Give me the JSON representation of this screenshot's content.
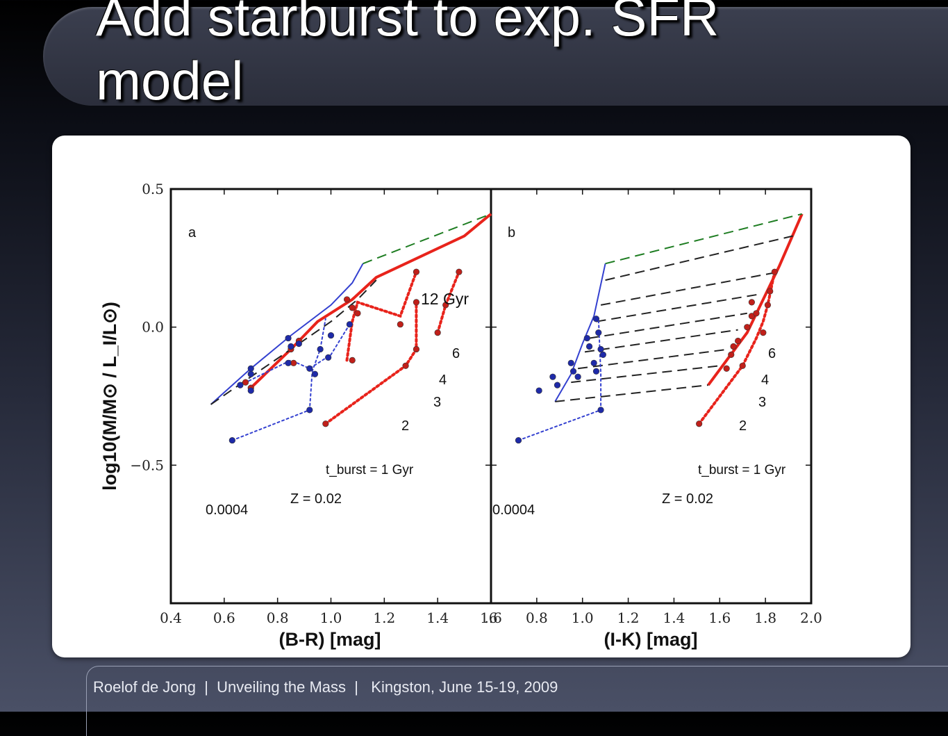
{
  "slide": {
    "title": "Add starburst to exp. SFR model",
    "footer": "Roelof de Jong  |  Unveiling the Mass  |   Kingston, June 15-19, 2009"
  },
  "chart_data": [
    {
      "panel_label": "a",
      "type": "line",
      "xlabel": "(B-R) [mag]",
      "ylabel": "log10(M/M⊙ / L_I/L⊙)",
      "xlim": [
        0.4,
        1.6
      ],
      "ylim": [
        -1.0,
        0.5
      ],
      "xticks": [
        "0.4",
        "0.6",
        "0.8",
        "1.0",
        "1.2",
        "1.4",
        "1.6"
      ],
      "yticks": [
        "0.5",
        "0.0",
        "−0.5"
      ],
      "annotations": [
        "12 Gyr",
        "6",
        "4",
        "3",
        "2",
        "t_burst = 1 Gyr",
        "Z = 0.02",
        "0.0004"
      ],
      "series": [
        {
          "line": "solid",
          "color": "#e8231b",
          "x": [
            0.7,
            0.85,
            0.95,
            1.08,
            1.17,
            1.5,
            1.6
          ],
          "y": [
            -0.22,
            -0.08,
            0.02,
            0.1,
            0.18,
            0.33,
            0.41
          ]
        },
        {
          "line": "solid",
          "color": "#3340d0",
          "x": [
            0.55,
            0.7,
            0.85,
            1.0,
            1.08,
            1.12
          ],
          "y": [
            -0.28,
            -0.15,
            -0.03,
            0.08,
            0.16,
            0.23
          ]
        },
        {
          "line": "dashed",
          "color": "#1e7d22",
          "x": [
            1.12,
            1.6
          ],
          "y": [
            0.23,
            0.41
          ]
        },
        {
          "line": "dashed",
          "color": "#222222",
          "x": [
            0.55,
            0.7,
            0.85,
            1.0,
            1.1,
            1.17
          ],
          "y": [
            -0.28,
            -0.18,
            -0.08,
            0.02,
            0.1,
            0.17
          ]
        },
        {
          "line": "dotted",
          "color": "#e8231b",
          "x": [
            0.98,
            1.28,
            1.32,
            1.32
          ],
          "y": [
            -0.35,
            -0.14,
            -0.08,
            0.09
          ]
        },
        {
          "line": "dotted",
          "color": "#e8231b",
          "x": [
            1.4,
            1.43,
            1.48
          ],
          "y": [
            -0.02,
            0.08,
            0.2
          ]
        },
        {
          "line": "dotted",
          "color": "#e8231b",
          "x": [
            1.06,
            1.08,
            1.1,
            1.26,
            1.32
          ],
          "y": [
            -0.12,
            0.02,
            0.09,
            0.04,
            0.2
          ]
        },
        {
          "line": "dotted",
          "color": "#3340d0",
          "x": [
            0.63,
            0.92,
            0.93,
            0.96,
            0.98
          ],
          "y": [
            -0.41,
            -0.3,
            -0.16,
            -0.08,
            0.03
          ]
        },
        {
          "line": "dotted",
          "color": "#3340d0",
          "x": [
            0.66,
            0.85,
            0.92,
            1.0,
            1.07
          ],
          "y": [
            -0.21,
            -0.12,
            -0.15,
            -0.1,
            0.01
          ]
        }
      ],
      "points": [
        {
          "color": "#c0201a",
          "x": [
            0.98,
            1.28,
            1.32,
            1.4,
            1.43,
            1.48,
            1.32,
            1.32,
            1.26,
            1.1,
            1.08,
            1.06,
            0.88,
            0.86,
            0.7,
            0.68,
            0.85,
            1.08
          ],
          "y": [
            -0.35,
            -0.14,
            -0.08,
            -0.02,
            0.08,
            0.2,
            0.09,
            0.2,
            0.01,
            0.05,
            0.07,
            0.1,
            -0.05,
            -0.13,
            -0.22,
            -0.2,
            -0.08,
            -0.12
          ]
        },
        {
          "color": "#1e2aa8",
          "x": [
            0.63,
            0.92,
            0.7,
            0.66,
            0.7,
            0.84,
            0.85,
            0.84,
            0.88,
            0.92,
            0.94,
            0.96,
            0.99,
            1.0,
            1.07,
            0.7
          ],
          "y": [
            -0.41,
            -0.3,
            -0.23,
            -0.21,
            -0.15,
            -0.04,
            -0.07,
            -0.13,
            -0.06,
            -0.15,
            -0.17,
            -0.08,
            -0.11,
            -0.03,
            0.01,
            -0.17
          ]
        }
      ]
    },
    {
      "panel_label": "b",
      "type": "line",
      "xlabel": "(I-K) [mag]",
      "xlim": [
        0.6,
        2.0
      ],
      "ylim": [
        -1.0,
        0.5
      ],
      "xticks": [
        ".6",
        "0.8",
        "1.0",
        "1.2",
        "1.4",
        "1.6",
        "1.8",
        "2.0"
      ],
      "annotations": [
        "6",
        "4",
        "3",
        "2",
        "t_burst = 1 Gyr",
        "Z = 0.02",
        "0.0004"
      ],
      "series": [
        {
          "line": "solid",
          "color": "#e8231b",
          "x": [
            1.55,
            1.72,
            1.86,
            1.96
          ],
          "y": [
            -0.21,
            -0.02,
            0.22,
            0.41
          ]
        },
        {
          "line": "solid",
          "color": "#3340d0",
          "x": [
            0.88,
            0.95,
            1.0,
            1.05,
            1.1
          ],
          "y": [
            -0.27,
            -0.17,
            -0.06,
            0.04,
            0.23
          ]
        },
        {
          "line": "dashed",
          "color": "#1e7d22",
          "x": [
            1.1,
            1.96
          ],
          "y": [
            0.23,
            0.41
          ]
        },
        {
          "line": "dashed",
          "color": "#222222",
          "x": [
            0.88,
            1.55
          ],
          "y": [
            -0.27,
            -0.21
          ]
        },
        {
          "line": "dashed",
          "color": "#222222",
          "x": [
            0.95,
            1.6
          ],
          "y": [
            -0.2,
            -0.14
          ]
        },
        {
          "line": "dashed",
          "color": "#222222",
          "x": [
            0.98,
            1.64
          ],
          "y": [
            -0.15,
            -0.08
          ]
        },
        {
          "line": "dashed",
          "color": "#222222",
          "x": [
            1.01,
            1.68
          ],
          "y": [
            -0.09,
            -0.01
          ]
        },
        {
          "line": "dashed",
          "color": "#222222",
          "x": [
            1.03,
            1.72
          ],
          "y": [
            -0.04,
            0.05
          ]
        },
        {
          "line": "dashed",
          "color": "#222222",
          "x": [
            1.06,
            1.78
          ],
          "y": [
            0.02,
            0.12
          ]
        },
        {
          "line": "dashed",
          "color": "#222222",
          "x": [
            1.08,
            1.86
          ],
          "y": [
            0.08,
            0.2
          ]
        },
        {
          "line": "dashed",
          "color": "#222222",
          "x": [
            1.1,
            1.92
          ],
          "y": [
            0.17,
            0.33
          ]
        },
        {
          "line": "dotted",
          "color": "#e8231b",
          "x": [
            1.51,
            1.7,
            1.76,
            1.79,
            1.81,
            1.82,
            1.83,
            1.84
          ],
          "y": [
            -0.35,
            -0.14,
            -0.04,
            0.02,
            0.08,
            0.12,
            0.16,
            0.2
          ]
        },
        {
          "line": "dotted",
          "color": "#3340d0",
          "x": [
            0.72,
            1.08,
            1.08,
            1.07
          ],
          "y": [
            -0.41,
            -0.3,
            -0.17,
            0.03
          ]
        }
      ],
      "points": [
        {
          "color": "#c0201a",
          "x": [
            1.51,
            1.7,
            1.63,
            1.65,
            1.66,
            1.68,
            1.72,
            1.74,
            1.76,
            1.79,
            1.81,
            1.82,
            1.84,
            1.74
          ],
          "y": [
            -0.35,
            -0.14,
            -0.15,
            -0.1,
            -0.07,
            -0.05,
            0.0,
            0.04,
            0.05,
            -0.02,
            0.08,
            0.13,
            0.2,
            0.09
          ]
        },
        {
          "color": "#1e2aa8",
          "x": [
            0.72,
            1.08,
            0.81,
            0.87,
            0.89,
            0.95,
            0.96,
            0.98,
            1.02,
            1.03,
            1.05,
            1.06,
            1.07,
            1.08,
            1.09,
            1.06
          ],
          "y": [
            -0.41,
            -0.3,
            -0.23,
            -0.18,
            -0.21,
            -0.13,
            -0.16,
            -0.18,
            -0.04,
            -0.07,
            -0.13,
            0.03,
            -0.02,
            -0.08,
            -0.1,
            -0.16
          ]
        }
      ]
    }
  ]
}
